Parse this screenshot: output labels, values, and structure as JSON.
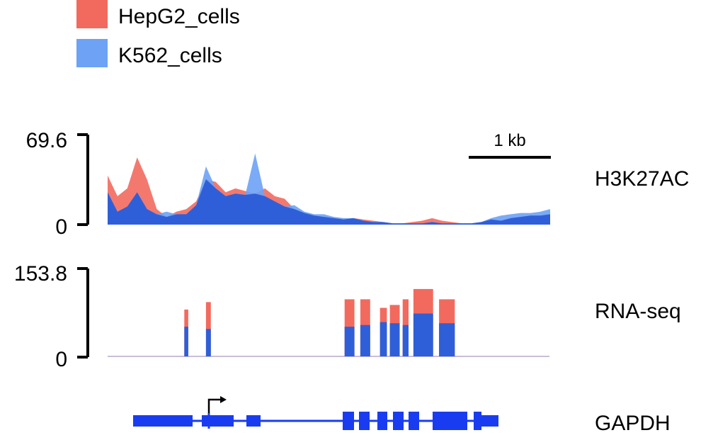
{
  "colors": {
    "hepg2": "#f26a5e",
    "k562": "#6da2f5",
    "hepg2_overlay": "#f03a2a",
    "k562_overlay": "#2f5fd8",
    "gene": "#1a3cf0"
  },
  "legend": {
    "items": [
      {
        "label": "HepG2_cells",
        "color": "#f26a5e"
      },
      {
        "label": "K562_cells",
        "color": "#6da2f5"
      }
    ]
  },
  "scale_bar": {
    "label": "1 kb"
  },
  "gene": {
    "name": "GAPDH",
    "strand": "+"
  },
  "chart_data": [
    {
      "type": "area",
      "track": "H3K27AC",
      "ylim": [
        0,
        69.6
      ],
      "y_ticks": [
        "69.6",
        "0"
      ],
      "x_unit": "kb from track start",
      "x": [
        0,
        0.1,
        0.2,
        0.3,
        0.4,
        0.5,
        0.6,
        0.7,
        0.8,
        0.9,
        1.0,
        1.1,
        1.2,
        1.3,
        1.4,
        1.5,
        1.6,
        1.7,
        1.8,
        1.9,
        2.0,
        2.1,
        2.2,
        2.3,
        2.4,
        2.5,
        2.6,
        2.7,
        2.8,
        2.9,
        3.0,
        3.1,
        3.2,
        3.3,
        3.4,
        3.5,
        3.6,
        3.7,
        3.8,
        3.9,
        4.0,
        4.1,
        4.2,
        4.3,
        4.4,
        4.5
      ],
      "series": [
        {
          "name": "HepG2_cells",
          "values": [
            38,
            22,
            28,
            52,
            35,
            12,
            6,
            10,
            12,
            18,
            35,
            33,
            25,
            28,
            26,
            24,
            28,
            22,
            20,
            12,
            9,
            7,
            6,
            5,
            4,
            5,
            4,
            3,
            2,
            1,
            1,
            2,
            3,
            5,
            3,
            2,
            1,
            1,
            2,
            4,
            3,
            5,
            6,
            7,
            7,
            8
          ]
        },
        {
          "name": "K562_cells",
          "values": [
            25,
            10,
            14,
            25,
            12,
            8,
            10,
            8,
            8,
            15,
            45,
            28,
            22,
            24,
            23,
            55,
            22,
            18,
            14,
            15,
            10,
            8,
            8,
            6,
            5,
            5,
            3,
            2,
            2,
            1,
            1,
            1,
            1,
            2,
            1,
            1,
            1,
            1,
            2,
            5,
            7,
            8,
            9,
            9,
            10,
            12
          ]
        }
      ]
    },
    {
      "type": "bar",
      "track": "RNA-seq",
      "ylim": [
        0,
        153.8
      ],
      "y_ticks": [
        "153.8",
        "0"
      ],
      "x_unit": "kb from track start",
      "exon_blocks_kb": [
        [
          0.78,
          0.82
        ],
        [
          1.0,
          1.05
        ],
        [
          2.41,
          2.51
        ],
        [
          2.57,
          2.67
        ],
        [
          2.77,
          2.84
        ],
        [
          2.87,
          2.97
        ],
        [
          3.0,
          3.06
        ],
        [
          3.11,
          3.31
        ],
        [
          3.37,
          3.53
        ]
      ],
      "series": [
        {
          "name": "HepG2_cells",
          "values": [
            82,
            95,
            100,
            100,
            85,
            90,
            100,
            118,
            100
          ]
        },
        {
          "name": "K562_cells",
          "values": [
            52,
            48,
            52,
            55,
            60,
            58,
            55,
            75,
            58
          ]
        }
      ]
    }
  ],
  "tracks": [
    "H3K27AC",
    "RNA-seq",
    "GAPDH"
  ]
}
